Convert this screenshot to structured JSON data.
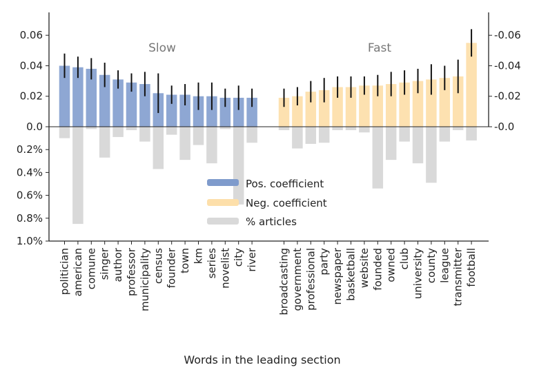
{
  "chart_data": {
    "type": "bar",
    "xlabel": "Words in the leading section",
    "groups": [
      {
        "name": "Slow",
        "coefficient_series": "Pos. coefficient",
        "categories": [
          "politician",
          "american",
          "comune",
          "singer",
          "author",
          "professor",
          "municipality",
          "census",
          "founder",
          "town",
          "km",
          "series",
          "novelist",
          "city",
          "river"
        ],
        "coefficients": [
          0.04,
          0.039,
          0.038,
          0.034,
          0.031,
          0.029,
          0.028,
          0.022,
          0.021,
          0.021,
          0.02,
          0.02,
          0.019,
          0.019,
          0.019
        ],
        "error": [
          0.008,
          0.007,
          0.007,
          0.008,
          0.006,
          0.006,
          0.008,
          0.013,
          0.006,
          0.007,
          0.009,
          0.009,
          0.006,
          0.008,
          0.006
        ],
        "pct_articles": [
          0.1,
          0.85,
          0.02,
          0.27,
          0.09,
          0.03,
          0.13,
          0.37,
          0.07,
          0.29,
          0.16,
          0.32,
          0.02,
          0.68,
          0.14
        ]
      },
      {
        "name": "Fast",
        "coefficient_series": "Neg. coefficient",
        "categories": [
          "broadcasting",
          "government",
          "professional",
          "party",
          "newspaper",
          "basketball",
          "website",
          "founded",
          "owned",
          "club",
          "university",
          "county",
          "league",
          "transmitter",
          "football"
        ],
        "coefficients": [
          0.019,
          0.02,
          0.023,
          0.024,
          0.026,
          0.026,
          0.027,
          0.027,
          0.028,
          0.029,
          0.03,
          0.031,
          0.032,
          0.033,
          0.055
        ],
        "error": [
          0.006,
          0.006,
          0.007,
          0.008,
          0.007,
          0.007,
          0.006,
          0.007,
          0.008,
          0.008,
          0.008,
          0.01,
          0.008,
          0.011,
          0.009
        ],
        "pct_articles": [
          0.03,
          0.19,
          0.15,
          0.14,
          0.03,
          0.03,
          0.05,
          0.54,
          0.29,
          0.13,
          0.32,
          0.49,
          0.13,
          0.03,
          0.12
        ]
      }
    ],
    "top_left_axis": {
      "range": [
        0,
        0.075
      ],
      "ticks": [
        0.0,
        0.02,
        0.04,
        0.06
      ],
      "tick_labels": [
        "0.0",
        "0.02",
        "0.04",
        "0.06"
      ]
    },
    "top_right_axis": {
      "range": [
        0,
        -0.075
      ],
      "ticks": [
        0.0,
        -0.02,
        -0.04,
        -0.06
      ],
      "tick_labels": [
        "-0.0",
        "-0.02",
        "-0.04",
        "-0.06"
      ]
    },
    "bottom_axis": {
      "range": [
        0,
        1.0
      ],
      "unit": "% articles",
      "ticks": [
        0.2,
        0.4,
        0.6,
        0.8,
        1.0
      ],
      "tick_labels": [
        "0.2%",
        "0.4%",
        "0.6%",
        "0.8%",
        "1.0%"
      ]
    },
    "legend": {
      "position": "center",
      "entries": [
        {
          "label": "Pos. coefficient",
          "color": "#7f9bcc"
        },
        {
          "label": "Neg. coefficient",
          "color": "#fddfaa"
        },
        {
          "label": "% articles",
          "color": "#d9d9d9"
        }
      ]
    }
  },
  "colors": {
    "pos": "#8ea7d3",
    "neg": "#fde1b0",
    "pct": "#d9d9d9",
    "error": "#111111",
    "axis": "#222222"
  }
}
